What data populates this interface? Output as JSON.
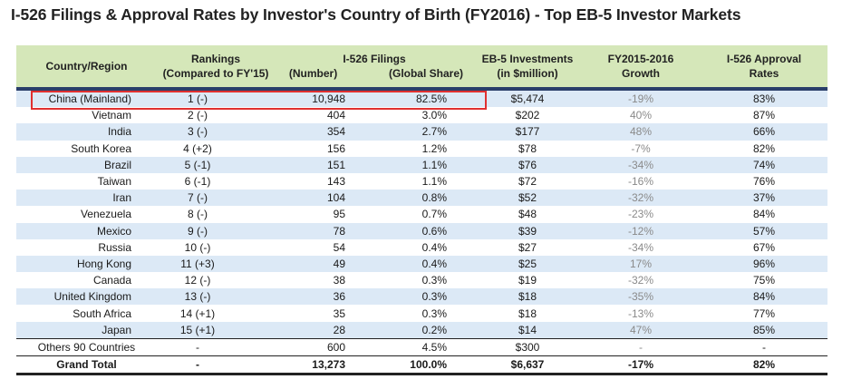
{
  "title": "I-526 Filings & Approval Rates by Investor's Country of Birth (FY2016) - Top EB-5 Investor Markets",
  "headers": {
    "country": "Country/Region",
    "rankings_line1": "Rankings",
    "rankings_line2": "(Compared to FY'15)",
    "filings_group": "I-526 Filings",
    "filings_number": "(Number)",
    "filings_share": "(Global Share)",
    "investments_line1": "EB-5 Investments",
    "investments_line2": "(in $million)",
    "growth_line1": "FY2015-2016",
    "growth_line2": "Growth",
    "approval_line1": "I-526 Approval",
    "approval_line2": "Rates"
  },
  "rows": [
    {
      "country": "China (Mainland)",
      "rank": "1 (-)",
      "number": "10,948",
      "share": "82.5%",
      "investment": "$5,474",
      "growth": "-19%",
      "approval": "83%"
    },
    {
      "country": "Vietnam",
      "rank": "2 (-)",
      "number": "404",
      "share": "3.0%",
      "investment": "$202",
      "growth": "40%",
      "approval": "87%"
    },
    {
      "country": "India",
      "rank": "3 (-)",
      "number": "354",
      "share": "2.7%",
      "investment": "$177",
      "growth": "48%",
      "approval": "66%"
    },
    {
      "country": "South Korea",
      "rank": "4 (+2)",
      "number": "156",
      "share": "1.2%",
      "investment": "$78",
      "growth": "-7%",
      "approval": "82%"
    },
    {
      "country": "Brazil",
      "rank": "5 (-1)",
      "number": "151",
      "share": "1.1%",
      "investment": "$76",
      "growth": "-34%",
      "approval": "74%"
    },
    {
      "country": "Taiwan",
      "rank": "6 (-1)",
      "number": "143",
      "share": "1.1%",
      "investment": "$72",
      "growth": "-16%",
      "approval": "76%"
    },
    {
      "country": "Iran",
      "rank": "7 (-)",
      "number": "104",
      "share": "0.8%",
      "investment": "$52",
      "growth": "-32%",
      "approval": "37%"
    },
    {
      "country": "Venezuela",
      "rank": "8 (-)",
      "number": "95",
      "share": "0.7%",
      "investment": "$48",
      "growth": "-23%",
      "approval": "84%"
    },
    {
      "country": "Mexico",
      "rank": "9 (-)",
      "number": "78",
      "share": "0.6%",
      "investment": "$39",
      "growth": "-12%",
      "approval": "57%"
    },
    {
      "country": "Russia",
      "rank": "10 (-)",
      "number": "54",
      "share": "0.4%",
      "investment": "$27",
      "growth": "-34%",
      "approval": "67%"
    },
    {
      "country": "Hong Kong",
      "rank": "11 (+3)",
      "number": "49",
      "share": "0.4%",
      "investment": "$25",
      "growth": "17%",
      "approval": "96%"
    },
    {
      "country": "Canada",
      "rank": "12 (-)",
      "number": "38",
      "share": "0.3%",
      "investment": "$19",
      "growth": "-32%",
      "approval": "75%"
    },
    {
      "country": "United Kingdom",
      "rank": "13 (-)",
      "number": "36",
      "share": "0.3%",
      "investment": "$18",
      "growth": "-35%",
      "approval": "84%"
    },
    {
      "country": "South Africa",
      "rank": "14 (+1)",
      "number": "35",
      "share": "0.3%",
      "investment": "$18",
      "growth": "-13%",
      "approval": "77%"
    },
    {
      "country": "Japan",
      "rank": "15 (+1)",
      "number": "28",
      "share": "0.2%",
      "investment": "$14",
      "growth": "47%",
      "approval": "85%"
    }
  ],
  "others": {
    "country": "Others 90 Countries",
    "rank": "-",
    "number": "600",
    "share": "4.5%",
    "investment": "$300",
    "growth": "-",
    "approval": "-"
  },
  "total": {
    "country": "Grand Total",
    "rank": "-",
    "number": "13,273",
    "share": "100.0%",
    "investment": "$6,637",
    "growth": "-17%",
    "approval": "82%"
  },
  "colors": {
    "header_bg": "#d5e7b9",
    "stripe": "#dce9f6",
    "header_rule": "#2a3f6a",
    "highlight": "#e03030",
    "growth_text": "#8a8a8a"
  }
}
